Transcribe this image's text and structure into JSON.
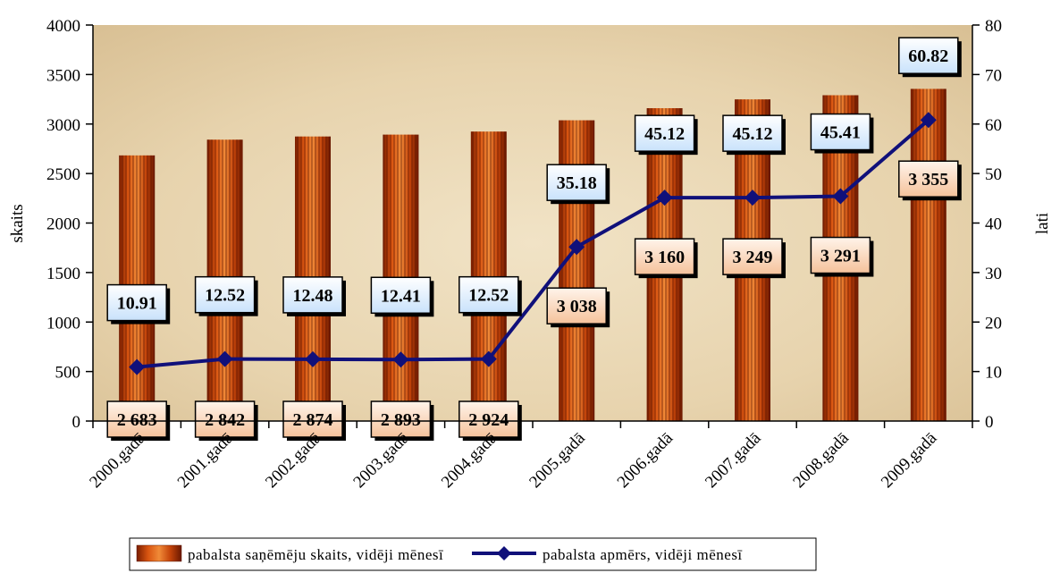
{
  "chart_data": {
    "type": "bar",
    "categories": [
      "2000.gadā",
      "2001.gadā",
      "2002.gadā",
      "2003.gadā",
      "2004.gadā",
      "2005.gadā",
      "2006.gadā",
      "2007.gadā",
      "2008.gadā",
      "2009.gadā"
    ],
    "series": [
      {
        "name": "pabalsta saņēmēju skaits, vidēji mēnesī",
        "type": "bar",
        "axis": "left",
        "color": "#c0440c",
        "values": [
          2683,
          2842,
          2874,
          2893,
          2924,
          3038,
          3160,
          3249,
          3291,
          3355
        ],
        "labels": [
          "2 683",
          "2 842",
          "2 874",
          "2 893",
          "2 924",
          "3 038",
          "3 160",
          "3 249",
          "3 291",
          "3 355"
        ]
      },
      {
        "name": "pabalsta apmērs, vidēji mēnesī",
        "type": "line",
        "axis": "right",
        "color": "#10107a",
        "values": [
          10.91,
          12.52,
          12.48,
          12.41,
          12.52,
          35.18,
          45.12,
          45.12,
          45.41,
          60.82
        ],
        "labels": [
          "10.91",
          "12.52",
          "12.48",
          "12.41",
          "12.52",
          "35.18",
          "45.12",
          "45.12",
          "45.41",
          "60.82"
        ]
      }
    ],
    "ylabel": "skaits",
    "y2label": "lati",
    "ylim": [
      0,
      4000
    ],
    "y2lim": [
      0,
      80
    ],
    "yticks": [
      "0",
      "500",
      "1000",
      "1500",
      "2000",
      "2500",
      "3000",
      "3500",
      "4000"
    ],
    "y2ticks": [
      "0",
      "10",
      "20",
      "30",
      "40",
      "50",
      "60",
      "70",
      "80"
    ],
    "legend_position": "bottom",
    "grid": false
  }
}
